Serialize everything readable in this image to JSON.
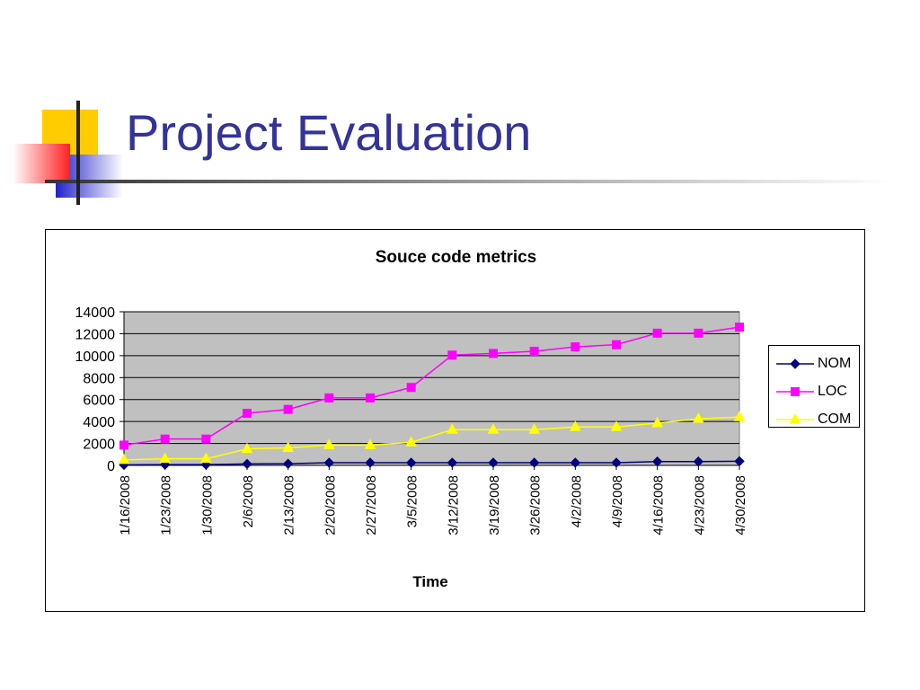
{
  "slide": {
    "title": "Project Evaluation"
  },
  "colors": {
    "title": "#333399",
    "plot_background": "#C0C0C0",
    "NOM": "#000080",
    "LOC": "#FF00FF",
    "COM": "#FFFF00"
  },
  "chart_data": {
    "type": "line",
    "title": "Souce code metrics",
    "xlabel": "Time",
    "ylabel": "",
    "ylim": [
      0,
      14000
    ],
    "yticks": [
      0,
      2000,
      4000,
      6000,
      8000,
      10000,
      12000,
      14000
    ],
    "grid": true,
    "legend_position": "right",
    "categories": [
      "1/16/2008",
      "1/23/2008",
      "1/30/2008",
      "2/6/2008",
      "2/13/2008",
      "2/20/2008",
      "2/27/2008",
      "3/5/2008",
      "3/12/2008",
      "3/19/2008",
      "3/26/2008",
      "4/2/2008",
      "4/9/2008",
      "4/16/2008",
      "4/23/2008",
      "4/30/2008"
    ],
    "series": [
      {
        "name": "NOM",
        "marker": "diamond",
        "values": [
          50,
          70,
          70,
          130,
          150,
          250,
          250,
          250,
          250,
          250,
          250,
          250,
          250,
          350,
          350,
          380
        ]
      },
      {
        "name": "LOC",
        "marker": "square",
        "values": [
          1850,
          2400,
          2400,
          4750,
          5100,
          6150,
          6150,
          7100,
          10050,
          10200,
          10400,
          10800,
          11000,
          12050,
          12050,
          12600
        ]
      },
      {
        "name": "COM",
        "marker": "triangle",
        "values": [
          500,
          600,
          600,
          1500,
          1600,
          1850,
          1850,
          2100,
          3250,
          3250,
          3250,
          3500,
          3500,
          3850,
          4250,
          4400
        ]
      }
    ]
  }
}
